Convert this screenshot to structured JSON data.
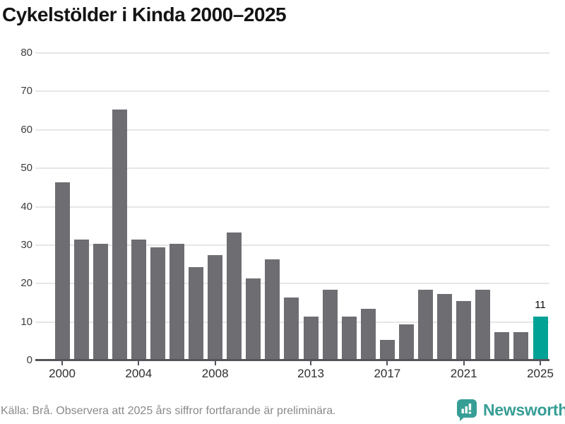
{
  "title": "Cykelstölder i Kinda 2000–2025",
  "footer": {
    "source_note": "Källa: Brå. Observera att 2025 års siffror fortfarande är preliminära."
  },
  "branding": {
    "wordmark": "Newsworthy",
    "icon": "newsworthy-bubble-bar-chart-icon",
    "color": "#379e96"
  },
  "chart_data": {
    "type": "bar",
    "title": "Cykelstölder i Kinda 2000–2025",
    "categories": [
      2000,
      2001,
      2002,
      2003,
      2004,
      2005,
      2006,
      2007,
      2008,
      2009,
      2010,
      2011,
      2012,
      2013,
      2014,
      2015,
      2016,
      2017,
      2018,
      2019,
      2020,
      2021,
      2022,
      2023,
      2024,
      2025
    ],
    "values": [
      46,
      31,
      30,
      65,
      31,
      29,
      30,
      24,
      27,
      33,
      21,
      26,
      16,
      11,
      18,
      11,
      13,
      5,
      9,
      18,
      17,
      15,
      18,
      7,
      7,
      11
    ],
    "highlight_year": 2025,
    "highlight_value_label": "11",
    "xlabel": "",
    "ylabel": "",
    "ylim": [
      0,
      80
    ],
    "y_ticks": [
      0,
      10,
      20,
      30,
      40,
      50,
      60,
      70,
      80
    ],
    "x_tick_years": [
      2000,
      2004,
      2008,
      2013,
      2017,
      2021,
      2025
    ],
    "grid": "horizontal",
    "legend": "none",
    "colors": {
      "bar": "#6e6d72",
      "highlight": "#00a296",
      "gridline": "#e6e6e6",
      "axis": "#54555a"
    }
  }
}
